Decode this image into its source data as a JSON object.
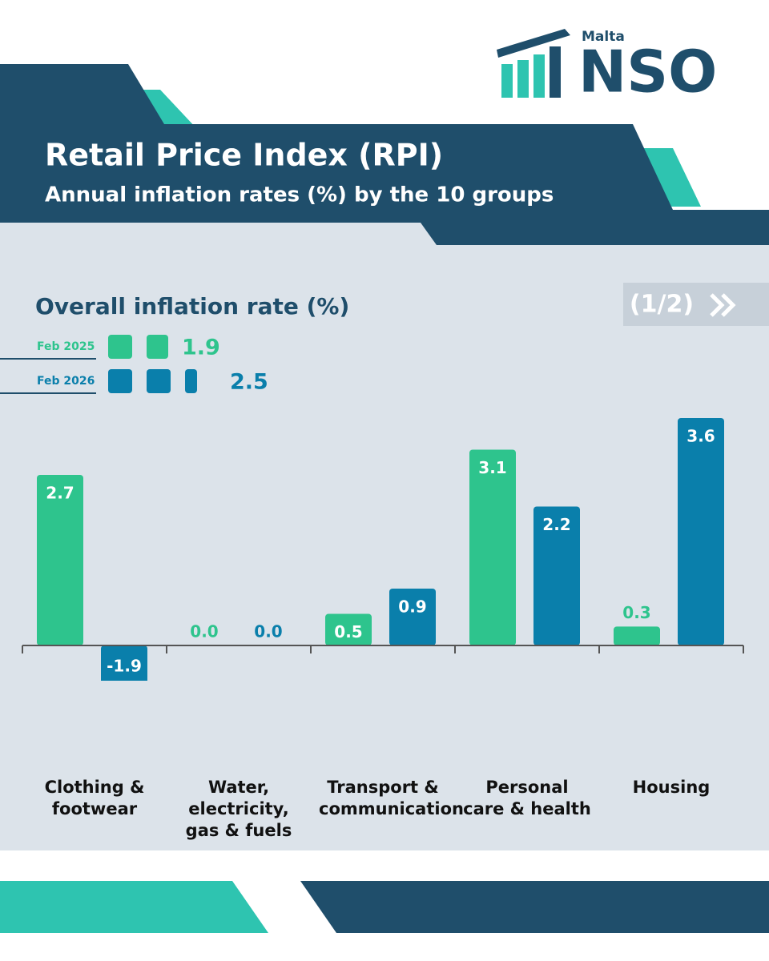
{
  "header": {
    "org_small": "Malta",
    "org": "NSO",
    "title": "Retail Price Index (RPI)",
    "subtitle": "Annual inflation rates (%) by the 10 groups",
    "page": "(1/2)"
  },
  "chart_data": {
    "type": "bar",
    "overall_title": "Overall inflation rate (%)",
    "categories": [
      "Clothing & footwear",
      "Water, electricity, gas & fuels",
      "Transport & communication",
      "Personal care & health",
      "Housing"
    ],
    "series": [
      {
        "name": "Feb 2025",
        "color": "#2ec48d",
        "overall": 1.9,
        "values": [
          2.7,
          0,
          0.5,
          3.1,
          0.3
        ],
        "value_labels": [
          "2.7",
          "0.0",
          "0.5",
          "3.1",
          "0.3"
        ]
      },
      {
        "name": "Feb 2026",
        "color": "#0a7fab",
        "overall": 2.5,
        "values": [
          -1.9,
          0,
          0.9,
          2.2,
          3.6
        ],
        "value_labels": [
          "-1.9",
          "0.0",
          "0.9",
          "2.2",
          "3.6"
        ]
      }
    ],
    "ylim": [
      -0.5,
      3.6
    ]
  }
}
